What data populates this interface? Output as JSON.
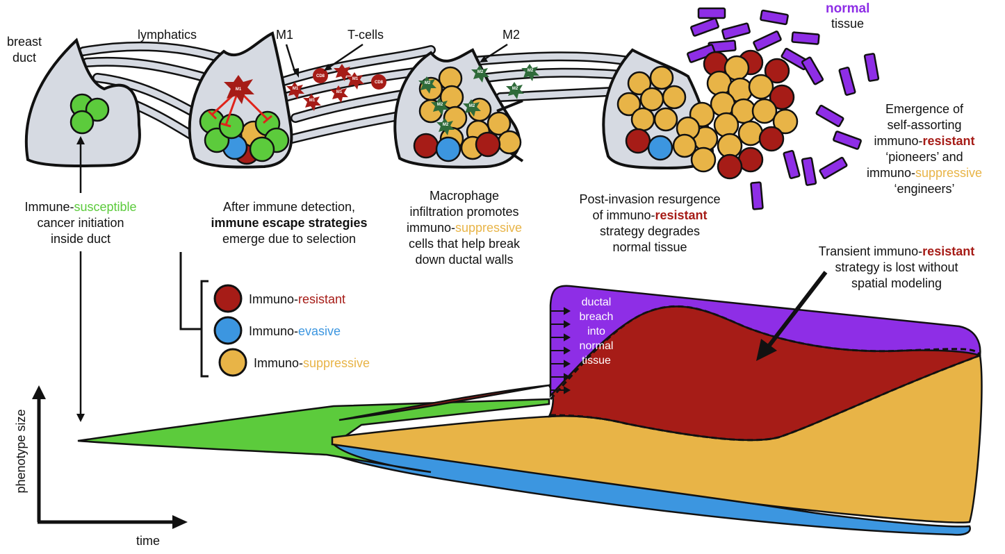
{
  "labels": {
    "breast_duct_1": "breast",
    "breast_duct_2": "duct",
    "lymphatics": "lymphatics",
    "m1": "M1",
    "tcells": "T-cells",
    "m2": "M2",
    "normal_tissue_1": "normal",
    "normal_tissue_2": "tissue",
    "cell_tag_m1": "M1",
    "cell_tag_cd8": "CD8",
    "cell_tag_m2": "M2"
  },
  "captions": {
    "stage1": {
      "line1_a": "Immune-",
      "line1_b": "susceptible",
      "line2": "cancer initiation",
      "line3": "inside duct"
    },
    "stage2": {
      "line1": "After immune detection,",
      "line2": "immune escape strategies",
      "line3": "emerge due to selection"
    },
    "stage3": {
      "line1": "Macrophage",
      "line2": "infiltration promotes",
      "line3_a": "immuno-",
      "line3_b": "suppressive",
      "line4": "cells that help break",
      "line5": "down ductal walls"
    },
    "stage4": {
      "line1": "Post-invasion resurgence",
      "line2_a": "of immuno-",
      "line2_b": "resistant",
      "line3": "strategy degrades",
      "line4": "normal tissue"
    },
    "stage5": {
      "line1": "Emergence of",
      "line2": "self-assorting",
      "line3_a": "immuno-",
      "line3_b": "resistant",
      "line4": "‘pioneers’ and",
      "line5_a": "immuno-",
      "line5_b": "suppressive",
      "line6": "‘engineers’"
    },
    "transient": {
      "line1_a": "Transient immuno-",
      "line1_b": "resistant",
      "line2": "strategy is lost without",
      "line3": "spatial modeling"
    }
  },
  "legend": [
    {
      "prefix": "Immuno-",
      "word": "resistant",
      "color": "#a61c17"
    },
    {
      "prefix": "Immuno-",
      "word": "evasive",
      "color": "#3c96e0"
    },
    {
      "prefix": "Immuno-",
      "word": "suppressive",
      "color": "#e8b447"
    }
  ],
  "breach_label": [
    "ductal",
    "breach",
    "into",
    "normal",
    "tissue"
  ],
  "axes": {
    "y_label": "phenotype size",
    "x_label": "time"
  },
  "colors": {
    "susceptible": "#5ccb3c",
    "resistant": "#a61c17",
    "evasive": "#3c96e0",
    "suppressive": "#e8b447",
    "normal_tissue": "#8e2ee6",
    "duct": "#d6dae2",
    "m2_cell": "#2f6b3a"
  }
}
